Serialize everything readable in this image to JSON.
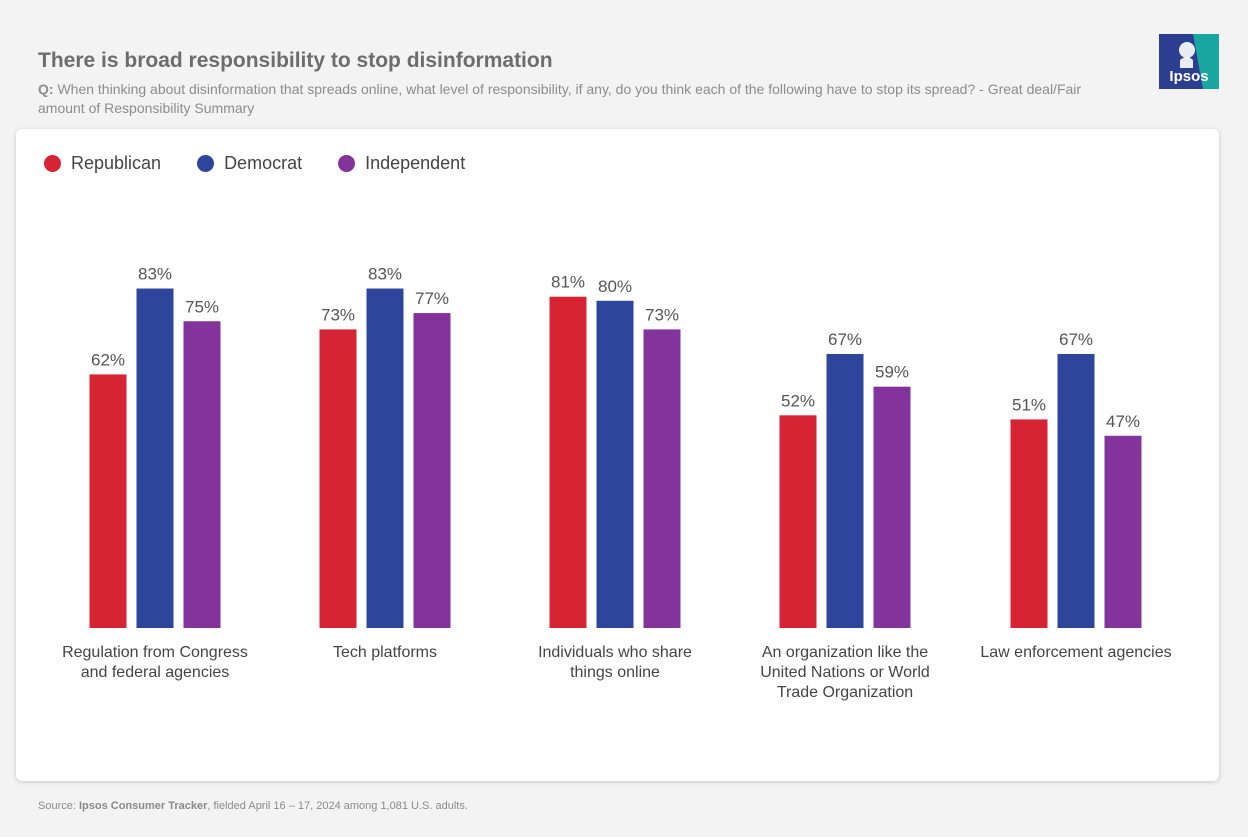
{
  "header": {
    "title": "There is broad responsibility to stop disinformation",
    "question_prefix": "Q:",
    "question_text": "When thinking about disinformation that spreads online, what level of responsibility, if any, do you think each of the following have to stop its spread? - Great deal/Fair amount of Responsibility Summary"
  },
  "logo": {
    "text": "Ipsos",
    "colors": {
      "dark": "#2c3e8f",
      "teal": "#1aa6a0"
    }
  },
  "footer": {
    "source_label": "Source:",
    "source_name": "Ipsos Consumer Tracker",
    "source_detail": ", fielded April 16 – 17, 2024 among 1,081 U.S. adults."
  },
  "chart_data": {
    "type": "bar",
    "title": "There is broad responsibility to stop disinformation",
    "xlabel": "",
    "ylabel": "",
    "ylim": [
      0,
      100
    ],
    "grid": false,
    "legend_position": "top-left",
    "value_suffix": "%",
    "categories": [
      [
        "Regulation from Congress",
        "and federal agencies"
      ],
      [
        "Tech platforms"
      ],
      [
        "Individuals who share",
        "things online"
      ],
      [
        "An organization like the",
        "United Nations or World",
        "Trade Organization"
      ],
      [
        "Law enforcement agencies"
      ]
    ],
    "series": [
      {
        "name": "Republican",
        "color": "#d62434",
        "values": [
          62,
          73,
          81,
          52,
          51
        ]
      },
      {
        "name": "Democrat",
        "color": "#2d469c",
        "values": [
          83,
          83,
          80,
          67,
          67
        ]
      },
      {
        "name": "Independent",
        "color": "#83349b",
        "values": [
          75,
          77,
          73,
          59,
          47
        ]
      }
    ]
  }
}
